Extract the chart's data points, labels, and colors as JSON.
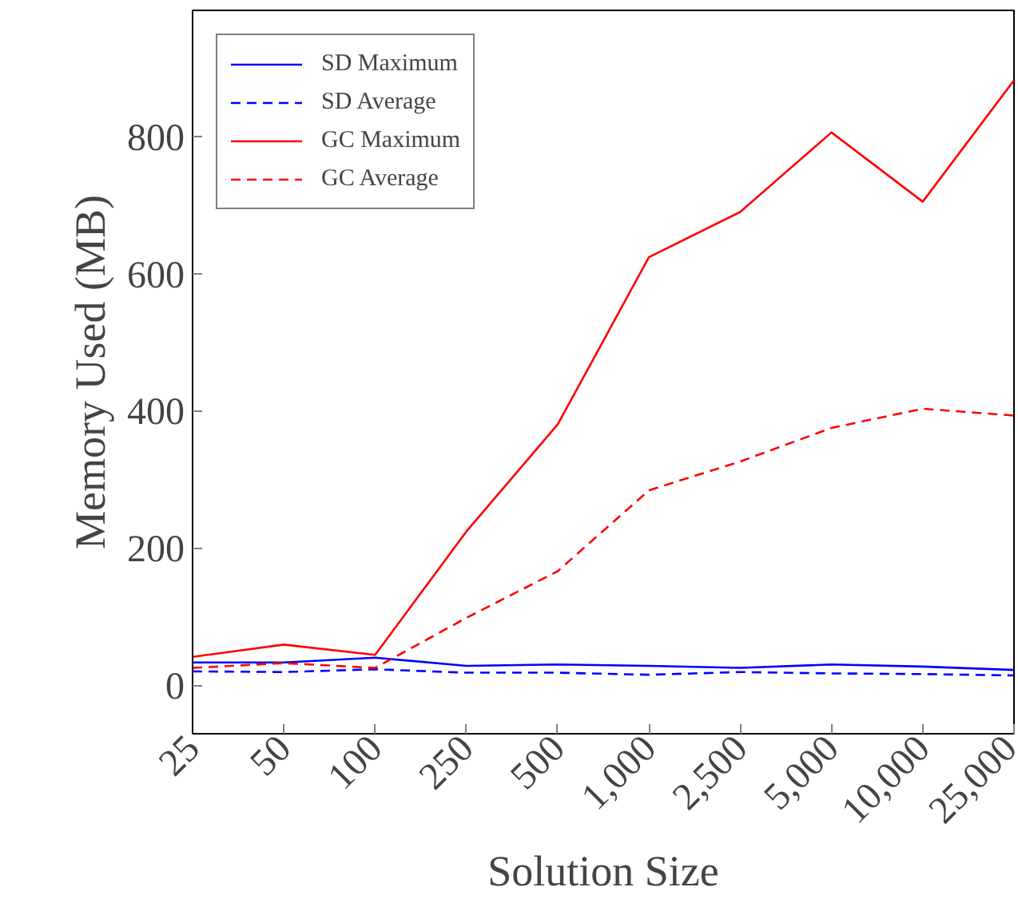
{
  "chart_data": {
    "type": "line",
    "xlabel": "Solution Size",
    "ylabel": "Memory Used (MB)",
    "categories": [
      "25",
      "50",
      "100",
      "250",
      "500",
      "1,000",
      "2,500",
      "5,000",
      "10,000",
      "25,000"
    ],
    "ylim": [
      -70,
      985
    ],
    "yticks": [
      0,
      200,
      400,
      600,
      800
    ],
    "grid": false,
    "legend": "top left",
    "marker": "none",
    "series": [
      {
        "name": "SD Maximum",
        "color": "#0000ff",
        "line_style": "solid",
        "values": [
          34,
          34,
          41,
          29,
          31,
          29,
          26,
          31,
          28,
          23
        ]
      },
      {
        "name": "SD Average",
        "color": "#0000ff",
        "line_style": "dashed",
        "values": [
          21,
          20,
          24,
          19,
          19,
          16,
          20,
          18,
          17,
          15
        ]
      },
      {
        "name": "GC Maximum",
        "color": "#ff0000",
        "line_style": "solid",
        "values": [
          42,
          60,
          45,
          225,
          381,
          625,
          691,
          807,
          706,
          883
        ]
      },
      {
        "name": "GC Average",
        "color": "#ff0000",
        "line_style": "dashed",
        "values": [
          26,
          33,
          26,
          99,
          167,
          285,
          327,
          376,
          404,
          394
        ]
      }
    ]
  }
}
